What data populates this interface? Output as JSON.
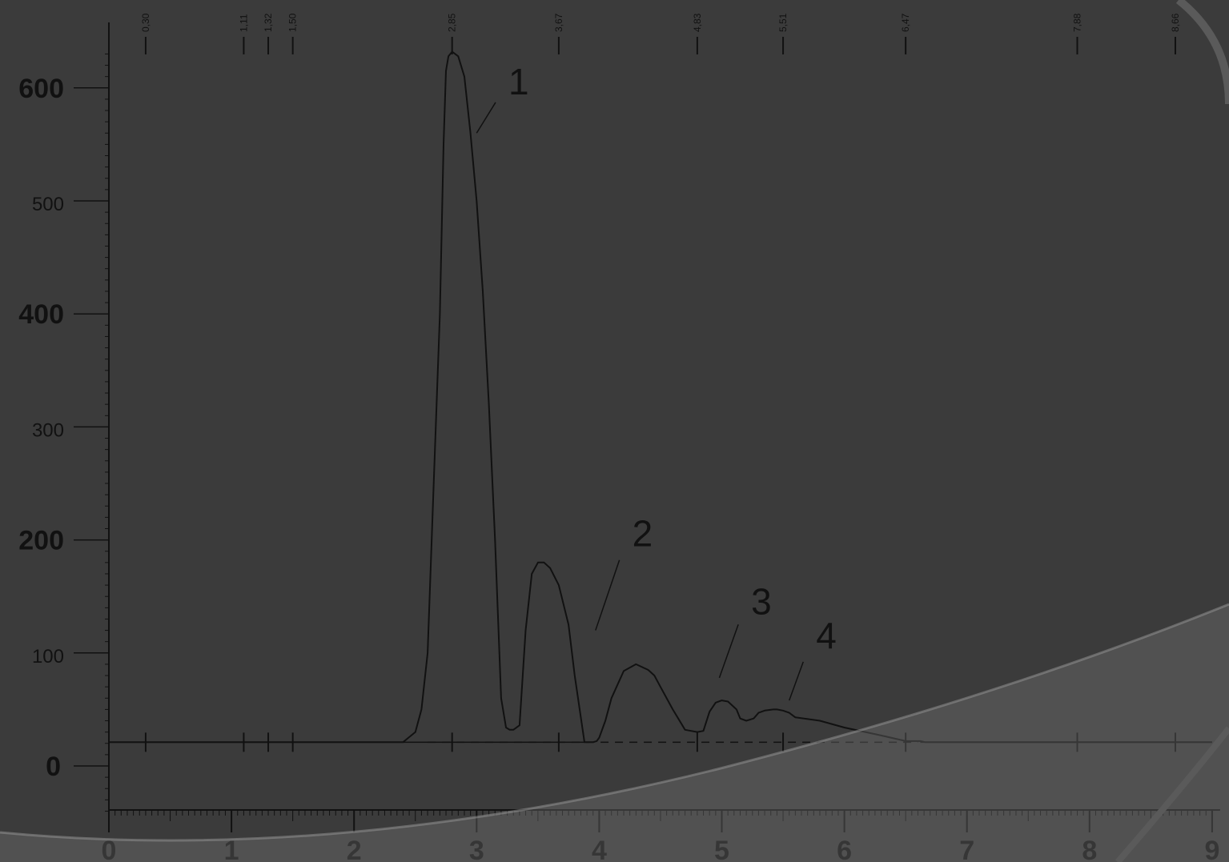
{
  "chart_data": {
    "type": "line",
    "y_axis": {
      "ylim": [
        0,
        600
      ],
      "ticks": [
        {
          "value": 600,
          "label": "600",
          "weight": "major"
        },
        {
          "value": 500,
          "label": "500",
          "weight": "minor"
        },
        {
          "value": 400,
          "label": "400",
          "weight": "major"
        },
        {
          "value": 300,
          "label": "300",
          "weight": "minor"
        },
        {
          "value": 200,
          "label": "200",
          "weight": "major"
        },
        {
          "value": 100,
          "label": "100",
          "weight": "minor"
        },
        {
          "value": 0,
          "label": "0",
          "weight": "major"
        }
      ]
    },
    "x_axis": {
      "xlim": [
        0,
        9
      ],
      "ticks": [
        "0",
        "1",
        "2",
        "3",
        "4",
        "5",
        "6",
        "7",
        "8",
        "9"
      ]
    },
    "baseline_value": 21,
    "retention_marks": [
      {
        "x": 0.3,
        "label": "0,30"
      },
      {
        "x": 1.1,
        "label": "1,11"
      },
      {
        "x": 1.3,
        "label": "1,32"
      },
      {
        "x": 1.5,
        "label": "1,50"
      },
      {
        "x": 2.8,
        "label": "2,85"
      },
      {
        "x": 3.67,
        "label": "3,67"
      },
      {
        "x": 4.8,
        "label": "4,83"
      },
      {
        "x": 5.5,
        "label": "5,51"
      },
      {
        "x": 6.5,
        "label": "6,47"
      },
      {
        "x": 7.9,
        "label": "7,88"
      },
      {
        "x": 8.7,
        "label": "8,66"
      }
    ],
    "peak_labels": [
      {
        "label": "1",
        "x": 3.22,
        "y": 590
      },
      {
        "label": "2",
        "x": 4.23,
        "y": 190
      },
      {
        "label": "3",
        "x": 5.2,
        "y": 130
      },
      {
        "label": "4",
        "x": 5.73,
        "y": 100
      }
    ],
    "series": [
      {
        "x": [
          0.0,
          2.4,
          2.5,
          2.55,
          2.6,
          2.65,
          2.7,
          2.73,
          2.75,
          2.77,
          2.8,
          2.85,
          2.9,
          2.95,
          3.0,
          3.05,
          3.1,
          3.15,
          3.2,
          3.24,
          3.27,
          3.3,
          3.35,
          3.4,
          3.45,
          3.5,
          3.55,
          3.6,
          3.67,
          3.75,
          3.8,
          3.88,
          3.95,
          3.98,
          4.0,
          4.05,
          4.1,
          4.2,
          4.3,
          4.4,
          4.45,
          4.5,
          4.6,
          4.7,
          4.8,
          4.85,
          4.9,
          4.95,
          5.0,
          5.05,
          5.12,
          5.15,
          5.2,
          5.26,
          5.3,
          5.35,
          5.42,
          5.45,
          5.5,
          5.55,
          5.6,
          5.8,
          6.0,
          6.3,
          6.5,
          6.62,
          6.66,
          6.7,
          7.0,
          9.0
        ],
        "y": [
          21,
          21,
          30,
          50,
          100,
          250,
          400,
          550,
          615,
          628,
          632,
          628,
          610,
          560,
          500,
          420,
          320,
          200,
          60,
          34,
          32,
          32,
          36,
          120,
          170,
          180,
          180,
          175,
          160,
          125,
          80,
          21,
          21,
          22,
          25,
          40,
          60,
          84,
          90,
          85,
          80,
          70,
          50,
          32,
          30,
          31,
          48,
          56,
          58,
          57,
          50,
          42,
          40,
          42,
          47,
          49,
          50,
          50,
          49,
          47,
          43,
          40,
          34,
          27,
          22,
          22,
          21,
          21,
          21,
          21
        ]
      }
    ]
  }
}
